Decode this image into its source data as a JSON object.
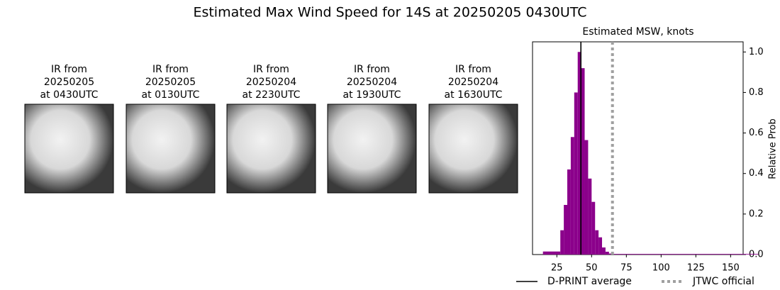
{
  "title": "Estimated Max Wind Speed for 14S at 20250205 0430UTC",
  "images": [
    {
      "caption": [
        "IR from",
        "20250205",
        "at 0430UTC"
      ]
    },
    {
      "caption": [
        "IR from",
        "20250205",
        "at 0130UTC"
      ]
    },
    {
      "caption": [
        "IR from",
        "20250204",
        "at 2230UTC"
      ]
    },
    {
      "caption": [
        "IR from",
        "20250204",
        "at 1930UTC"
      ]
    },
    {
      "caption": [
        "IR from",
        "20250204",
        "at 1630UTC"
      ]
    }
  ],
  "chart_data": {
    "type": "histogram",
    "title": "Estimated MSW, knots",
    "ylabel": "Relative Prob",
    "bins": [
      15,
      27.5,
      30,
      32.5,
      35,
      37.5,
      40,
      42.5,
      45,
      47.5,
      50,
      52.5,
      55,
      57.5,
      60,
      62.5,
      65,
      170
    ],
    "values": [
      0.015,
      0.12,
      0.245,
      0.42,
      0.58,
      0.8,
      1.0,
      0.92,
      0.565,
      0.375,
      0.26,
      0.12,
      0.085,
      0.035,
      0.014,
      0.005,
      0.003
    ],
    "color": "#8b008b",
    "xlim": [
      7.5,
      159
    ],
    "ylim": [
      0,
      1.05
    ],
    "xticks": [
      25,
      50,
      75,
      100,
      125,
      150
    ],
    "yticks": [
      {
        "value": 0,
        "label": "0.0"
      },
      0.2,
      0.4,
      0.6,
      0.8,
      {
        "value": 1,
        "label": "1.0"
      }
    ],
    "lines": [
      {
        "name": "D-PRINT average",
        "value": 42.3,
        "color": "#000000",
        "style": "solid"
      },
      {
        "name": "JTWC official",
        "value": 65,
        "color": "#a0a0a0",
        "style": "dotted"
      }
    ],
    "legend": "bottom"
  }
}
